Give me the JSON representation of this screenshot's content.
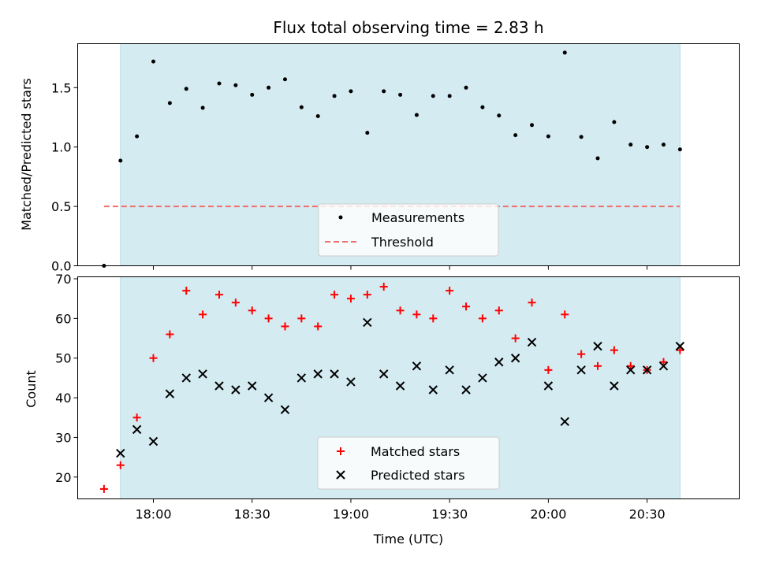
{
  "chart_data": [
    {
      "type": "scatter",
      "title": "Flux total observing time = 2.83 h",
      "xlabel": "",
      "ylabel": "Matched/Predicted stars",
      "ylim": [
        0,
        1.87
      ],
      "yticks": [
        "0.0",
        "0.5",
        "1.0",
        "1.5"
      ],
      "ytick_values": [
        0,
        0.5,
        1.0,
        1.5
      ],
      "observing_window": [
        "17:50",
        "20:40"
      ],
      "threshold": 0.5,
      "legend": {
        "position": "lower-center",
        "entries": [
          "Measurements",
          "Threshold"
        ]
      },
      "colors": {
        "observing_window": "#d4ebf1",
        "measurements": "#000000",
        "threshold": "#f06e6e"
      },
      "series": [
        {
          "name": "Measurements",
          "x": [
            "17:45",
            "17:50",
            "17:55",
            "18:00",
            "18:05",
            "18:10",
            "18:15",
            "18:20",
            "18:25",
            "18:30",
            "18:35",
            "18:40",
            "18:45",
            "18:50",
            "18:55",
            "19:00",
            "19:05",
            "19:10",
            "19:15",
            "19:20",
            "19:25",
            "19:30",
            "19:35",
            "19:40",
            "19:45",
            "19:50",
            "19:55",
            "20:00",
            "20:05",
            "20:10",
            "20:15",
            "20:20",
            "20:25",
            "20:30",
            "20:35",
            "20:40"
          ],
          "y": [
            0.0,
            0.885,
            1.09,
            1.72,
            1.37,
            1.49,
            1.33,
            1.535,
            1.52,
            1.44,
            1.5,
            1.57,
            1.335,
            1.26,
            1.43,
            1.47,
            1.12,
            1.47,
            1.44,
            1.27,
            1.43,
            1.43,
            1.5,
            1.335,
            1.265,
            1.1,
            1.185,
            1.09,
            1.795,
            1.085,
            0.905,
            1.21,
            1.02,
            1.0,
            1.02,
            0.98
          ]
        },
        {
          "name": "Threshold",
          "x": [
            "17:45",
            "20:40"
          ],
          "y": [
            0.5,
            0.5
          ]
        }
      ]
    },
    {
      "type": "scatter",
      "title": "",
      "xlabel": "Time (UTC)",
      "ylabel": "Count",
      "ylim": [
        14.5,
        70.5
      ],
      "xlim": [
        "17:37",
        "20:58"
      ],
      "xticks": [
        "18:00",
        "18:30",
        "19:00",
        "19:30",
        "20:00",
        "20:30"
      ],
      "yticks": [
        "20",
        "30",
        "40",
        "50",
        "60",
        "70"
      ],
      "ytick_values": [
        20,
        30,
        40,
        50,
        60,
        70
      ],
      "observing_window": [
        "17:50",
        "20:40"
      ],
      "legend": {
        "position": "lower-center",
        "entries": [
          "Matched stars",
          "Predicted stars"
        ]
      },
      "colors": {
        "observing_window": "#d4ebf1",
        "matched": "#ff0000",
        "predicted": "#000000"
      },
      "series": [
        {
          "name": "Matched stars",
          "x": [
            "17:45",
            "17:50",
            "17:55",
            "18:00",
            "18:05",
            "18:10",
            "18:15",
            "18:20",
            "18:25",
            "18:30",
            "18:35",
            "18:40",
            "18:45",
            "18:50",
            "18:55",
            "19:00",
            "19:05",
            "19:10",
            "19:15",
            "19:20",
            "19:25",
            "19:30",
            "19:35",
            "19:40",
            "19:45",
            "19:50",
            "19:55",
            "20:00",
            "20:05",
            "20:10",
            "20:15",
            "20:20",
            "20:25",
            "20:30",
            "20:35",
            "20:40"
          ],
          "y": [
            17,
            23,
            35,
            50,
            56,
            67,
            61,
            66,
            64,
            62,
            60,
            58,
            60,
            58,
            66,
            65,
            66,
            68,
            62,
            61,
            60,
            67,
            63,
            60,
            62,
            55,
            64,
            47,
            61,
            51,
            48,
            52,
            48,
            47,
            49,
            52
          ]
        },
        {
          "name": "Predicted stars",
          "x": [
            "17:50",
            "17:55",
            "18:00",
            "18:05",
            "18:10",
            "18:15",
            "18:20",
            "18:25",
            "18:30",
            "18:35",
            "18:40",
            "18:45",
            "18:50",
            "18:55",
            "19:00",
            "19:05",
            "19:10",
            "19:15",
            "19:20",
            "19:25",
            "19:30",
            "19:35",
            "19:40",
            "19:45",
            "19:50",
            "19:55",
            "20:00",
            "20:05",
            "20:10",
            "20:15",
            "20:20",
            "20:25",
            "20:30",
            "20:35",
            "20:40"
          ],
          "y": [
            26,
            32,
            29,
            41,
            45,
            46,
            43,
            42,
            43,
            40,
            37,
            45,
            46,
            46,
            44,
            59,
            46,
            43,
            48,
            42,
            47,
            42,
            45,
            49,
            50,
            54,
            43,
            34,
            47,
            53,
            43,
            47,
            47,
            48,
            53
          ]
        }
      ]
    }
  ]
}
